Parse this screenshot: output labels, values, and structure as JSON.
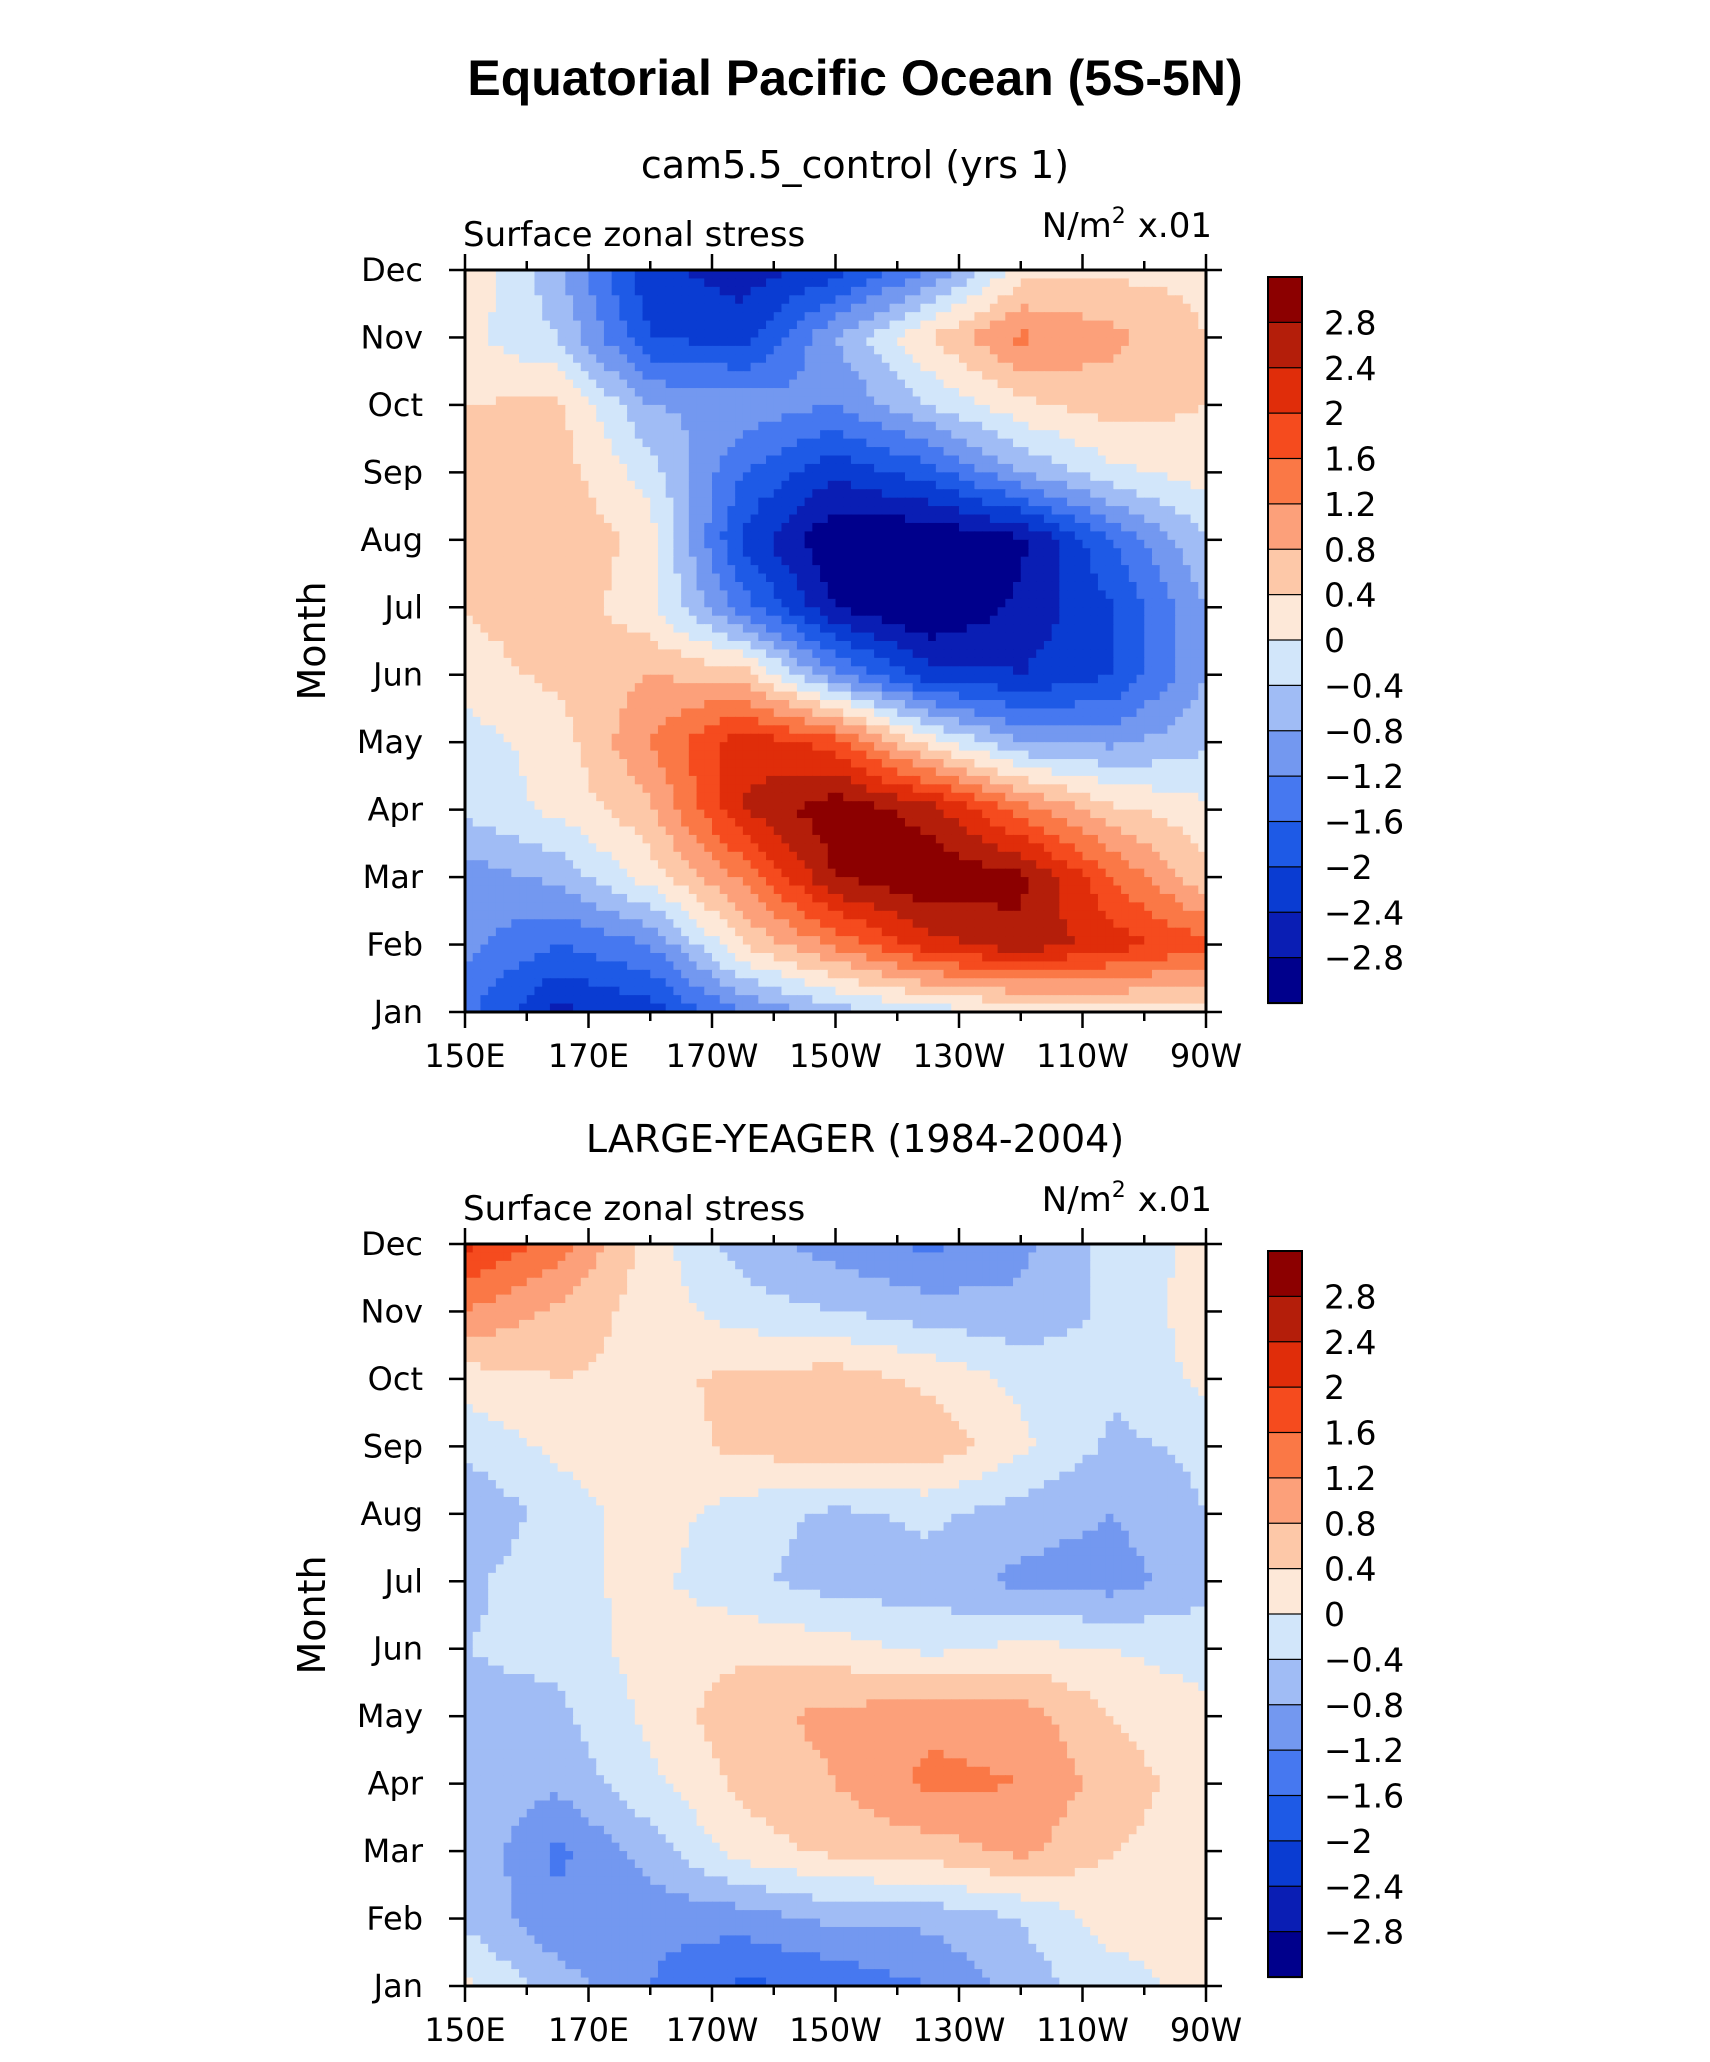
{
  "title": "Equatorial Pacific Ocean (5S-5N)",
  "chart_data": [
    {
      "type": "heatmap",
      "subtitle": "cam5.5_control (yrs 1)",
      "left_label": "Surface zonal stress",
      "units_label": "N/m",
      "units_sup": "2",
      "units_scale": "x.01",
      "ylabel": "Month",
      "xticks": [
        "150E",
        "170E",
        "170W",
        "150W",
        "130W",
        "110W",
        "90W"
      ],
      "yticks": [
        "Jan",
        "Feb",
        "Mar",
        "Apr",
        "May",
        "Jun",
        "Jul",
        "Aug",
        "Sep",
        "Oct",
        "Nov",
        "Dec"
      ],
      "xlim": [
        150,
        270
      ],
      "ylim": [
        1,
        12
      ],
      "colorbar_labels": [
        "2.8",
        "2.4",
        "2",
        "1.6",
        "1.2",
        "0.8",
        "0.4",
        "0",
        "−0.4",
        "−0.8",
        "−1.2",
        "−1.6",
        "−2",
        "−2.4",
        "−2.8"
      ],
      "lon": [
        150,
        165,
        180,
        195,
        210,
        225,
        240,
        255,
        270
      ],
      "z": [
        [
          -1.5,
          -2.5,
          -2.2,
          -1.2,
          -0.6,
          -0.2,
          0.0,
          0.2,
          0.2
        ],
        [
          -1.1,
          -1.6,
          -1.2,
          0.4,
          1.3,
          2.2,
          2.7,
          2.2,
          1.7
        ],
        [
          -1.0,
          -0.7,
          0.2,
          1.3,
          2.8,
          3.2,
          2.9,
          1.6,
          0.5
        ],
        [
          -0.3,
          0.1,
          0.7,
          2.4,
          3.1,
          2.6,
          1.4,
          0.5,
          0.1
        ],
        [
          -0.2,
          0.2,
          1.2,
          2.3,
          1.8,
          0.2,
          -0.8,
          -0.9,
          -0.5
        ],
        [
          0.2,
          0.5,
          0.8,
          0.6,
          -1.1,
          -2.2,
          -2.4,
          -2.0,
          -0.8
        ],
        [
          0.4,
          0.7,
          0.1,
          -1.4,
          -2.8,
          -3.3,
          -2.7,
          -2.0,
          -0.8
        ],
        [
          0.6,
          0.8,
          0.2,
          -2.1,
          -3.2,
          -3.2,
          -2.9,
          -1.6,
          -0.4
        ],
        [
          0.6,
          0.6,
          -0.2,
          -1.6,
          -2.3,
          -1.8,
          -0.8,
          -0.1,
          0.2
        ],
        [
          0.4,
          0.5,
          -0.8,
          -0.9,
          -1.2,
          -0.4,
          0.3,
          0.6,
          0.4
        ],
        [
          0.1,
          -0.4,
          -2.0,
          -2.2,
          -0.8,
          0.4,
          1.3,
          0.9,
          0.4
        ],
        [
          0.4,
          -0.7,
          -2.3,
          -2.6,
          -2.2,
          -1.2,
          0.2,
          0.3,
          0.3
        ]
      ]
    },
    {
      "type": "heatmap",
      "subtitle": "LARGE-YEAGER (1984-2004)",
      "left_label": "Surface zonal stress",
      "units_label": "N/m",
      "units_sup": "2",
      "units_scale": "x.01",
      "ylabel": "Month",
      "xticks": [
        "150E",
        "170E",
        "170W",
        "150W",
        "130W",
        "110W",
        "90W"
      ],
      "yticks": [
        "Jan",
        "Feb",
        "Mar",
        "Apr",
        "May",
        "Jun",
        "Jul",
        "Aug",
        "Sep",
        "Oct",
        "Nov",
        "Dec"
      ],
      "xlim": [
        150,
        270
      ],
      "ylim": [
        1,
        12
      ],
      "colorbar_labels": [
        "2.8",
        "2.4",
        "2",
        "1.6",
        "1.2",
        "0.8",
        "0.4",
        "0",
        "−0.4",
        "−0.8",
        "−1.2",
        "−1.6",
        "−2",
        "−2.4",
        "−2.8"
      ],
      "lon": [
        150,
        165,
        180,
        195,
        210,
        225,
        240,
        255,
        270
      ],
      "z": [
        [
          0.1,
          -0.6,
          -1.2,
          -1.7,
          -1.5,
          -1.2,
          -0.6,
          -0.2,
          0.2
        ],
        [
          -0.5,
          -1.1,
          -1.1,
          -1.0,
          -0.7,
          -0.7,
          -0.4,
          0.2,
          0.1
        ],
        [
          -0.4,
          -1.3,
          -0.6,
          0.2,
          0.5,
          0.6,
          0.9,
          0.4,
          0.2
        ],
        [
          -0.6,
          -0.7,
          -0.1,
          0.5,
          0.8,
          1.3,
          1.2,
          0.6,
          0.2
        ],
        [
          -0.5,
          -0.5,
          0.1,
          0.7,
          0.9,
          1.1,
          1.0,
          0.4,
          0.1
        ],
        [
          -0.4,
          -0.3,
          0.2,
          0.3,
          0.2,
          -0.1,
          0.1,
          0.0,
          -0.2
        ],
        [
          -0.5,
          -0.1,
          0.1,
          -0.3,
          -0.6,
          -0.6,
          -0.9,
          -1.0,
          -0.5
        ],
        [
          -0.8,
          -0.2,
          0.2,
          -0.2,
          -0.5,
          -0.3,
          -0.6,
          -0.8,
          -0.4
        ],
        [
          -0.3,
          0.1,
          0.2,
          0.5,
          0.7,
          0.7,
          0.1,
          -0.5,
          -0.3
        ],
        [
          0.2,
          0.4,
          0.3,
          0.5,
          0.6,
          0.3,
          -0.1,
          -0.3,
          0.1
        ],
        [
          1.2,
          0.7,
          0.2,
          -0.2,
          -0.4,
          -0.6,
          -0.7,
          -0.3,
          0.2
        ],
        [
          2.1,
          1.4,
          0.2,
          -0.6,
          -1.0,
          -1.3,
          -0.9,
          -0.2,
          0.1
        ]
      ]
    }
  ]
}
